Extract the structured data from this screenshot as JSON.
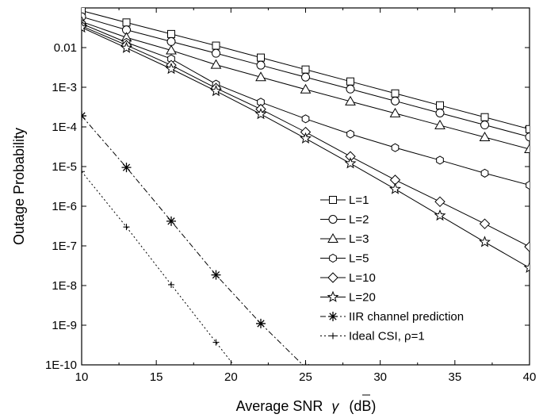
{
  "chart_data": {
    "type": "line",
    "xlabel": "Average SNR",
    "xlabel_symbol": "γ",
    "xlabel_unit": "(dB)",
    "ylabel": "Outage Probability",
    "xlim": [
      10,
      40
    ],
    "ylim": [
      1e-10,
      0.1
    ],
    "yscale": "log",
    "x_ticks": [
      10,
      15,
      20,
      25,
      30,
      35,
      40
    ],
    "x_tick_labels": [
      "10",
      "15",
      "20",
      "25",
      "30",
      "35",
      "40"
    ],
    "y_ticks": [
      0.01,
      0.001,
      0.0001,
      1e-05,
      1e-06,
      1e-07,
      1e-08,
      1e-09,
      1e-10
    ],
    "y_tick_labels": [
      "0.01",
      "1E-3",
      "1E-4",
      "1E-5",
      "1E-6",
      "1E-7",
      "1E-8",
      "1E-9",
      "1E-10"
    ],
    "grid": false,
    "legend_position": "bottom-right",
    "series": [
      {
        "name": "L=1",
        "marker": "square",
        "line": "solid",
        "x": [
          10,
          13,
          16,
          19,
          22,
          25,
          28,
          31,
          34,
          37,
          40
        ],
        "y": [
          0.085,
          0.043,
          0.022,
          0.0112,
          0.0056,
          0.0028,
          0.0014,
          0.0007,
          0.00035,
          0.000176,
          8.8e-05
        ]
      },
      {
        "name": "L=2",
        "marker": "circle",
        "line": "solid",
        "x": [
          10,
          13,
          16,
          19,
          22,
          25,
          28,
          31,
          34,
          37,
          40
        ],
        "y": [
          0.06,
          0.028,
          0.0142,
          0.0072,
          0.0036,
          0.0018,
          0.0009,
          0.00045,
          0.000224,
          0.000112,
          5.6e-05
        ]
      },
      {
        "name": "L=3",
        "marker": "triangle",
        "line": "solid",
        "x": [
          10,
          13,
          16,
          19,
          22,
          25,
          28,
          31,
          34,
          37,
          40
        ],
        "y": [
          0.045,
          0.018,
          0.0085,
          0.0037,
          0.0018,
          0.00088,
          0.00044,
          0.00022,
          0.00011,
          5.5e-05,
          2.75e-05
        ]
      },
      {
        "name": "L=5",
        "marker": "hexagon",
        "line": "solid",
        "x": [
          10,
          13,
          16,
          19,
          22,
          25,
          28,
          31,
          34,
          37,
          40
        ],
        "y": [
          0.04,
          0.0135,
          0.0052,
          0.0012,
          0.00042,
          0.00016,
          6.6e-05,
          3e-05,
          1.45e-05,
          6.8e-06,
          3.4e-06
        ]
      },
      {
        "name": "L=10",
        "marker": "diamond",
        "line": "solid",
        "x": [
          10,
          13,
          16,
          19,
          22,
          25,
          28,
          31,
          34,
          37,
          40
        ],
        "y": [
          0.035,
          0.0115,
          0.0036,
          0.00095,
          0.00028,
          7.4e-05,
          1.8e-05,
          4.6e-06,
          1.3e-06,
          3.6e-07,
          9.5e-08
        ]
      },
      {
        "name": "L=20",
        "marker": "star",
        "line": "solid",
        "x": [
          10,
          13,
          16,
          19,
          22,
          25,
          28,
          31,
          34,
          37,
          40
        ],
        "y": [
          0.032,
          0.0098,
          0.0029,
          0.0008,
          0.00021,
          5.1e-05,
          1.2e-05,
          2.7e-06,
          5.8e-07,
          1.25e-07,
          2.8e-08
        ]
      },
      {
        "name": "IIR channel prediction",
        "marker": "asterisk",
        "line": "dashdot",
        "x": [
          10,
          13,
          16,
          19,
          22,
          25
        ],
        "y": [
          0.00019,
          9.5e-06,
          4.2e-07,
          1.85e-08,
          1.1e-09,
          8.5e-11
        ]
      },
      {
        "name": "Ideal CSI, ρ=1",
        "marker": "plus",
        "line": "dotted",
        "x": [
          10,
          13,
          16,
          19,
          21
        ],
        "y": [
          7.5e-06,
          3e-07,
          1.05e-08,
          3.7e-10,
          4e-11
        ]
      }
    ]
  }
}
